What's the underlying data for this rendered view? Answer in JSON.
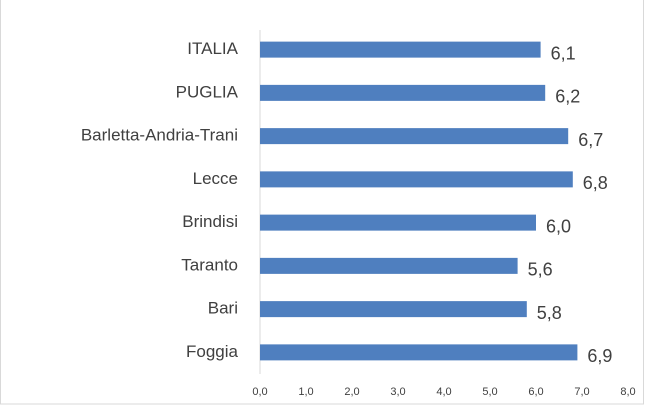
{
  "chart_data": {
    "type": "bar",
    "orientation": "horizontal",
    "categories": [
      "ITALIA",
      "PUGLIA",
      "Barletta-Andria-Trani",
      "Lecce",
      "Brindisi",
      "Taranto",
      "Bari",
      "Foggia"
    ],
    "values": [
      6.1,
      6.2,
      6.7,
      6.8,
      6.0,
      5.6,
      5.8,
      6.9
    ],
    "value_labels": [
      "6,1",
      "6,2",
      "6,7",
      "6,8",
      "6,0",
      "5,6",
      "5,8",
      "6,9"
    ],
    "color": "#4f7fbf",
    "xlim": [
      0,
      8
    ],
    "xticks": [
      {
        "value": 0,
        "label": "0,0"
      },
      {
        "value": 1,
        "label": "1,0"
      },
      {
        "value": 2,
        "label": "2,0"
      },
      {
        "value": 3,
        "label": "3,0"
      },
      {
        "value": 4,
        "label": "4,0"
      },
      {
        "value": 5,
        "label": "5,0"
      },
      {
        "value": 6,
        "label": "6,0"
      },
      {
        "value": 7,
        "label": "7,0"
      },
      {
        "value": 8,
        "label": "8,0"
      }
    ],
    "grid": false
  }
}
